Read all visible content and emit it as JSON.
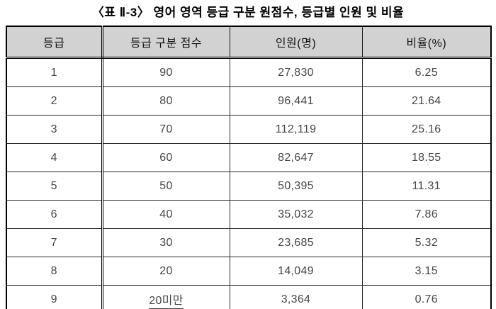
{
  "title": "〈표 Ⅱ-3〉 영어 영역 등급 구분 원점수, 등급별 인원 및 비율",
  "table": {
    "headers": [
      "등급",
      "등급 구분 점수",
      "인원(명)",
      "비율(%)"
    ],
    "rows": [
      [
        "1",
        "90",
        "27,830",
        "6.25"
      ],
      [
        "2",
        "80",
        "96,441",
        "21.64"
      ],
      [
        "3",
        "70",
        "112,119",
        "25.16"
      ],
      [
        "4",
        "60",
        "82,647",
        "18.55"
      ],
      [
        "5",
        "50",
        "50,395",
        "11.31"
      ],
      [
        "6",
        "40",
        "35,032",
        "7.86"
      ],
      [
        "7",
        "30",
        "23,685",
        "5.32"
      ],
      [
        "8",
        "20",
        "14,049",
        "3.15"
      ],
      [
        "9",
        "20미만",
        "3,364",
        "0.76"
      ]
    ],
    "spellcheck_marked_text": "20미만"
  },
  "colors": {
    "header_background": "#d2d2d2",
    "border": "#000000",
    "body_text": "#454545",
    "spellcheck_underline": "#ff7f27"
  }
}
